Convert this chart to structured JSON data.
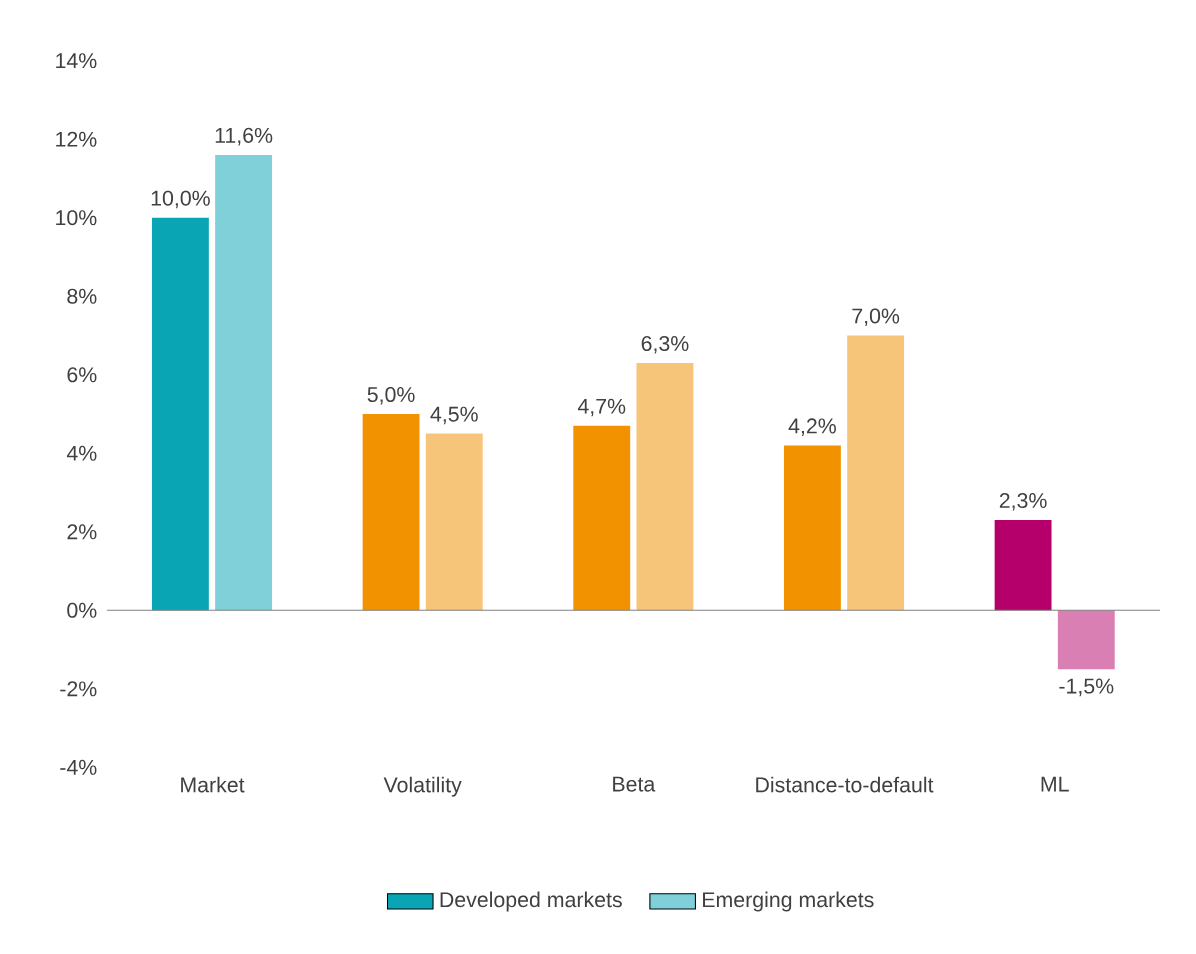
{
  "chart_data": {
    "type": "bar",
    "categories": [
      "Market",
      "Volatility",
      "Beta",
      "Distance-to-default",
      "ML"
    ],
    "series": [
      {
        "name": "Developed markets",
        "color": "#0aa5b5",
        "colors": [
          "#0aa5b5",
          "#f39200",
          "#f39200",
          "#f39200",
          "#b5006b"
        ],
        "values": [
          10.0,
          5.0,
          4.7,
          4.2,
          2.3
        ],
        "value_labels": [
          "10,0%",
          "5,0%",
          "4,7%",
          "4,2%",
          "2,3%"
        ]
      },
      {
        "name": "Emerging markets",
        "color": "#7fd0d8",
        "colors": [
          "#7fd0d8",
          "#f7c57a",
          "#f7c57a",
          "#f7c57a",
          "#d97fb3"
        ],
        "values": [
          11.6,
          4.5,
          6.3,
          7.0,
          -1.5
        ],
        "value_labels": [
          "11,6%",
          "4,5%",
          "6,3%",
          "7,0%",
          "-1,5%"
        ]
      }
    ],
    "ylim": [
      -4,
      14
    ],
    "yticks": [
      {
        "value": -4,
        "label": "-4%"
      },
      {
        "value": -2,
        "label": "-2%"
      },
      {
        "value": 0,
        "label": "0%"
      },
      {
        "value": 2,
        "label": "2%"
      },
      {
        "value": 4,
        "label": "4%"
      },
      {
        "value": 6,
        "label": "6%"
      },
      {
        "value": 8,
        "label": "8%"
      },
      {
        "value": 10,
        "label": "10%"
      },
      {
        "value": 12,
        "label": "12%"
      },
      {
        "value": 14,
        "label": "14%"
      }
    ],
    "legend": "bottom"
  }
}
